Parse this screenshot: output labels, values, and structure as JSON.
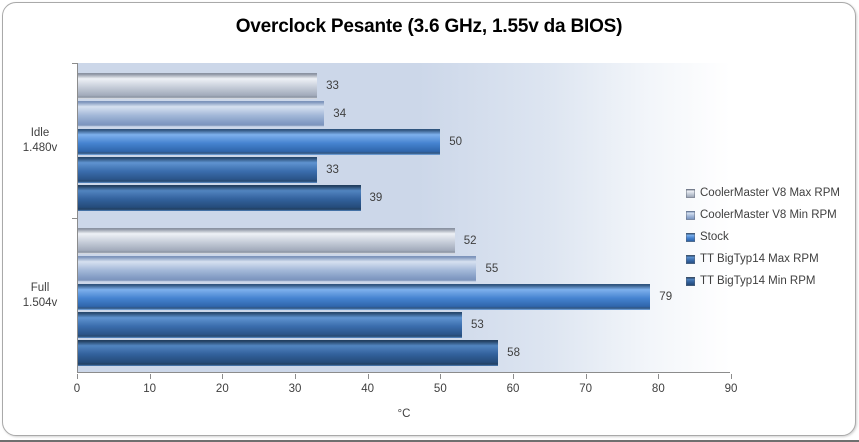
{
  "chart_data": {
    "type": "bar",
    "orientation": "horizontal",
    "title": "Overclock Pesante (3.6 GHz, 1.55v da BIOS)",
    "xlabel": "°C",
    "xlim": [
      0,
      90
    ],
    "xticks": [
      0,
      10,
      20,
      30,
      40,
      50,
      60,
      70,
      80,
      90
    ],
    "grid": false,
    "legend_position": "right",
    "categories": [
      {
        "line1": "Idle",
        "line2": "1.480v"
      },
      {
        "line1": "Full",
        "line2": "1.504v"
      }
    ],
    "series": [
      {
        "name": "CoolerMaster V8 Max RPM",
        "values": [
          33,
          52
        ],
        "colors": {
          "edge": "#8b93a2",
          "hi": "#eef1f6",
          "base": "#c5ccd8",
          "low": "#a2abbb"
        }
      },
      {
        "name": "CoolerMaster V8 Min RPM",
        "values": [
          34,
          55
        ],
        "colors": {
          "edge": "#7d94bb",
          "hi": "#d6e1f0",
          "base": "#a3b8d8",
          "low": "#8099c2"
        }
      },
      {
        "name": "Stock",
        "values": [
          50,
          79
        ],
        "colors": {
          "edge": "#30557f",
          "hi": "#7db0ec",
          "base": "#4583d0",
          "low": "#2f66ac"
        }
      },
      {
        "name": "TT BigTyp14 Max RPM",
        "values": [
          33,
          53
        ],
        "colors": {
          "edge": "#27496f",
          "hi": "#5f93d0",
          "base": "#3a6dad",
          "low": "#2b5489"
        }
      },
      {
        "name": "TT BigTyp14 Min RPM",
        "values": [
          39,
          58
        ],
        "colors": {
          "edge": "#223f60",
          "hi": "#5184bf",
          "base": "#32619c",
          "low": "#254b7a"
        }
      }
    ],
    "colors": {
      "plot_bg_left": "#ccd7e9",
      "plot_bg_right": "#ffffff",
      "axis": "#8c8c8c",
      "text": "#3f3f3f",
      "title_text": "#000000"
    }
  }
}
